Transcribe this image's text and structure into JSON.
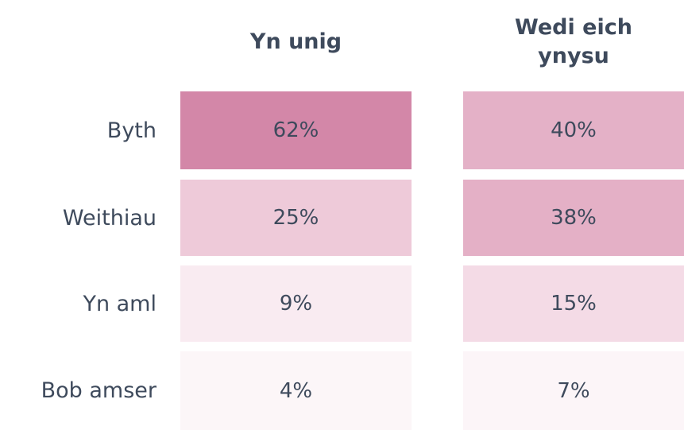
{
  "chart_data": {
    "type": "heatmap",
    "rows": [
      "Byth",
      "Weithiau",
      "Yn aml",
      "Bob amser"
    ],
    "series": [
      {
        "name": "Yn unig",
        "values": [
          62,
          25,
          9,
          4
        ],
        "value_labels": [
          "62%",
          "25%",
          "9%",
          "4%"
        ],
        "colors": [
          "#d387a8",
          "#eecad9",
          "#f9ebf1",
          "#fcf6f8"
        ]
      },
      {
        "name": "Wedi eich ynysu",
        "values": [
          40,
          38,
          15,
          7
        ],
        "value_labels": [
          "40%",
          "38%",
          "15%",
          "7%"
        ],
        "colors": [
          "#e4b1c7",
          "#e4b0c6",
          "#f4dbe6",
          "#fcf5f8"
        ]
      }
    ]
  }
}
